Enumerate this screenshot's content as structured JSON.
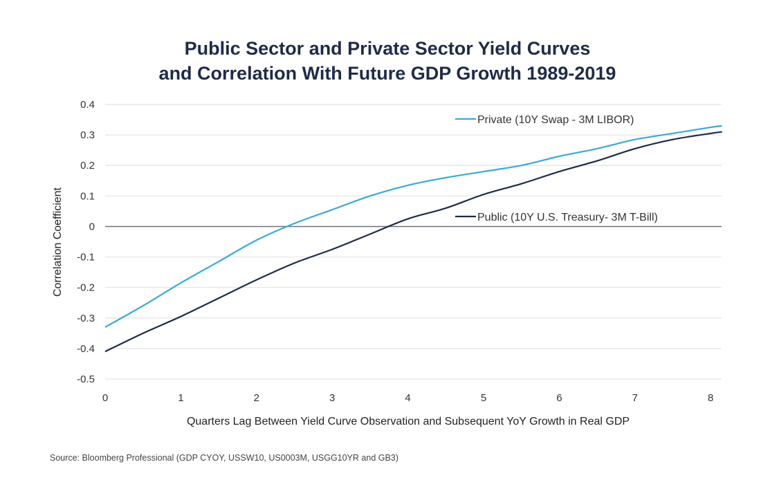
{
  "chart_data": {
    "type": "line",
    "title": "Public Sector and Private Sector Yield Curves",
    "subtitle": "and Correlation With Future GDP Growth 1989-2019",
    "xlabel": "Quarters Lag Between Yield Curve Observation and Subsequent YoY Growth in Real GDP",
    "ylabel": "Correlation Coefficient",
    "xlim": [
      0,
      8.15
    ],
    "ylim": [
      -0.5,
      0.4
    ],
    "xticks": [
      "0",
      "1",
      "2",
      "3",
      "4",
      "5",
      "6",
      "7",
      "8"
    ],
    "yticks": [
      "0.4",
      "0.3",
      "0.2",
      "0.1",
      "0",
      "-0.1",
      "-0.2",
      "-0.3",
      "-0.4",
      "-0.5"
    ],
    "grid": true,
    "legend": "inline-right",
    "x": [
      0,
      0.5,
      1,
      1.5,
      2,
      2.5,
      3,
      3.5,
      4,
      4.5,
      5,
      5.5,
      6,
      6.5,
      7,
      7.5,
      8,
      8.15
    ],
    "series": [
      {
        "name": "Private (10Y Swap - 3M LIBOR)",
        "color": "#3aaad6",
        "values": [
          -0.33,
          -0.26,
          -0.185,
          -0.115,
          -0.045,
          0.01,
          0.055,
          0.1,
          0.135,
          0.16,
          0.18,
          0.2,
          0.23,
          0.255,
          0.285,
          0.305,
          0.325,
          0.33
        ]
      },
      {
        "name": "Public (10Y U.S. Treasury- 3M T-Bill)",
        "color": "#1d2b48",
        "values": [
          -0.41,
          -0.35,
          -0.295,
          -0.235,
          -0.175,
          -0.12,
          -0.075,
          -0.025,
          0.025,
          0.06,
          0.105,
          0.14,
          0.18,
          0.215,
          0.255,
          0.285,
          0.305,
          0.31
        ]
      }
    ]
  },
  "source": "Source: Bloomberg Professional (GDP CYOY, USSW10, US0003M, USGG10YR and GB3)"
}
